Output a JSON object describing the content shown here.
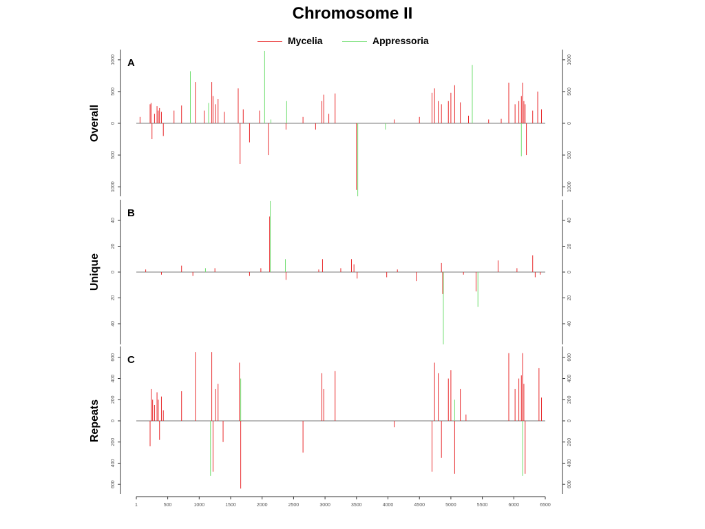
{
  "title": "Chromosome II",
  "legend": [
    {
      "label": "Mycelia",
      "color": "#e8282a"
    },
    {
      "label": "Appressoria",
      "color": "#6fde6f"
    }
  ],
  "chart_data": {
    "type": "bar",
    "x_ticks": [
      1,
      500,
      1000,
      1500,
      2000,
      2500,
      3000,
      3500,
      4000,
      4500,
      5000,
      5500,
      6000,
      6500
    ],
    "xlim": [
      1,
      6500
    ],
    "panels": [
      {
        "letter": "A",
        "ylabel": "Overall",
        "ylim": [
          -1150,
          1150
        ],
        "y_ticks": [
          -1000,
          -500,
          0,
          500,
          1000
        ],
        "y_tick_labels": [
          "1000",
          "500",
          "0",
          "500",
          "1000"
        ],
        "series": [
          {
            "name": "Mycelia",
            "x": [
              60,
              220,
              235,
              250,
              290,
              330,
              350,
              370,
              400,
              430,
              600,
              720,
              940,
              1080,
              1200,
              1220,
              1260,
              1300,
              1400,
              1620,
              1650,
              1700,
              1800,
              1960,
              2100,
              2380,
              2650,
              2850,
              2950,
              2980,
              3060,
              3160,
              3500,
              4100,
              4500,
              4700,
              4740,
              4800,
              4850,
              4960,
              5000,
              5060,
              5150,
              5280,
              5600,
              5800,
              5920,
              6020,
              6080,
              6120,
              6140,
              6160,
              6180,
              6200,
              6300,
              6380,
              6440
            ],
            "values": [
              100,
              300,
              320,
              -250,
              150,
              270,
              200,
              240,
              180,
              -200,
              200,
              280,
              650,
              200,
              650,
              430,
              300,
              380,
              180,
              550,
              -640,
              220,
              -300,
              200,
              -500,
              -100,
              100,
              -100,
              350,
              450,
              150,
              470,
              -1050,
              60,
              100,
              480,
              550,
              350,
              300,
              350,
              480,
              600,
              330,
              120,
              60,
              70,
              640,
              300,
              350,
              430,
              640,
              350,
              300,
              -500,
              200,
              500,
              220
            ]
          },
          {
            "name": "Appressoria",
            "x": [
              860,
              1150,
              2040,
              2140,
              2390,
              3520,
              3960,
              5340,
              6120
            ],
            "values": [
              820,
              320,
              1140,
              60,
              350,
              -1150,
              -100,
              920,
              -520
            ]
          }
        ]
      },
      {
        "letter": "B",
        "ylabel": "Unique",
        "ylim": [
          -56,
          56
        ],
        "y_ticks": [
          -40,
          -20,
          0,
          20,
          40
        ],
        "y_tick_labels": [
          "40",
          "20",
          "0",
          "20",
          "40"
        ],
        "series": [
          {
            "name": "Mycelia",
            "x": [
              150,
              400,
              720,
              900,
              1250,
              1800,
              1980,
              2120,
              2380,
              2900,
              2960,
              3250,
              3420,
              3460,
              3510,
              3980,
              4150,
              4450,
              4850,
              4870,
              5200,
              5400,
              5750,
              6050,
              6300,
              6340,
              6420
            ],
            "values": [
              2,
              -2,
              5,
              -3,
              3,
              -3,
              3,
              43,
              -6,
              2,
              10,
              3,
              10,
              6,
              -5,
              -4,
              2,
              -7,
              7,
              -17,
              -2,
              -15,
              9,
              3,
              13,
              -4,
              -2
            ]
          },
          {
            "name": "Appressoria",
            "x": [
              1100,
              2130,
              2370,
              4880,
              5430
            ],
            "values": [
              3,
              55,
              10,
              -56,
              -27
            ]
          }
        ]
      },
      {
        "letter": "C",
        "ylabel": "Repeats",
        "ylim": [
          -690,
          690
        ],
        "y_ticks": [
          -600,
          -400,
          -200,
          0,
          200,
          400,
          600
        ],
        "y_tick_labels": [
          "600",
          "400",
          "200",
          "0",
          "200",
          "400",
          "600"
        ],
        "series": [
          {
            "name": "Mycelia",
            "x": [
              220,
              240,
              260,
              290,
              330,
              350,
              370,
              400,
              430,
              720,
              940,
              1200,
              1220,
              1260,
              1300,
              1380,
              1640,
              1660,
              2650,
              2950,
              2980,
              3160,
              4100,
              4700,
              4740,
              4800,
              4850,
              4960,
              5000,
              5060,
              5150,
              5240,
              5920,
              6020,
              6080,
              6120,
              6140,
              6160,
              6180,
              6400,
              6440
            ],
            "values": [
              -240,
              300,
              200,
              150,
              270,
              200,
              -180,
              230,
              100,
              280,
              650,
              650,
              -480,
              300,
              350,
              -200,
              550,
              -640,
              -300,
              450,
              300,
              470,
              -60,
              -480,
              550,
              450,
              -350,
              400,
              480,
              -500,
              300,
              60,
              640,
              300,
              400,
              430,
              640,
              350,
              -500,
              500,
              220
            ]
          },
          {
            "name": "Appressoria",
            "x": [
              1180,
              1660,
              5060,
              6140
            ],
            "values": [
              -520,
              400,
              200,
              -520
            ]
          }
        ]
      }
    ]
  }
}
